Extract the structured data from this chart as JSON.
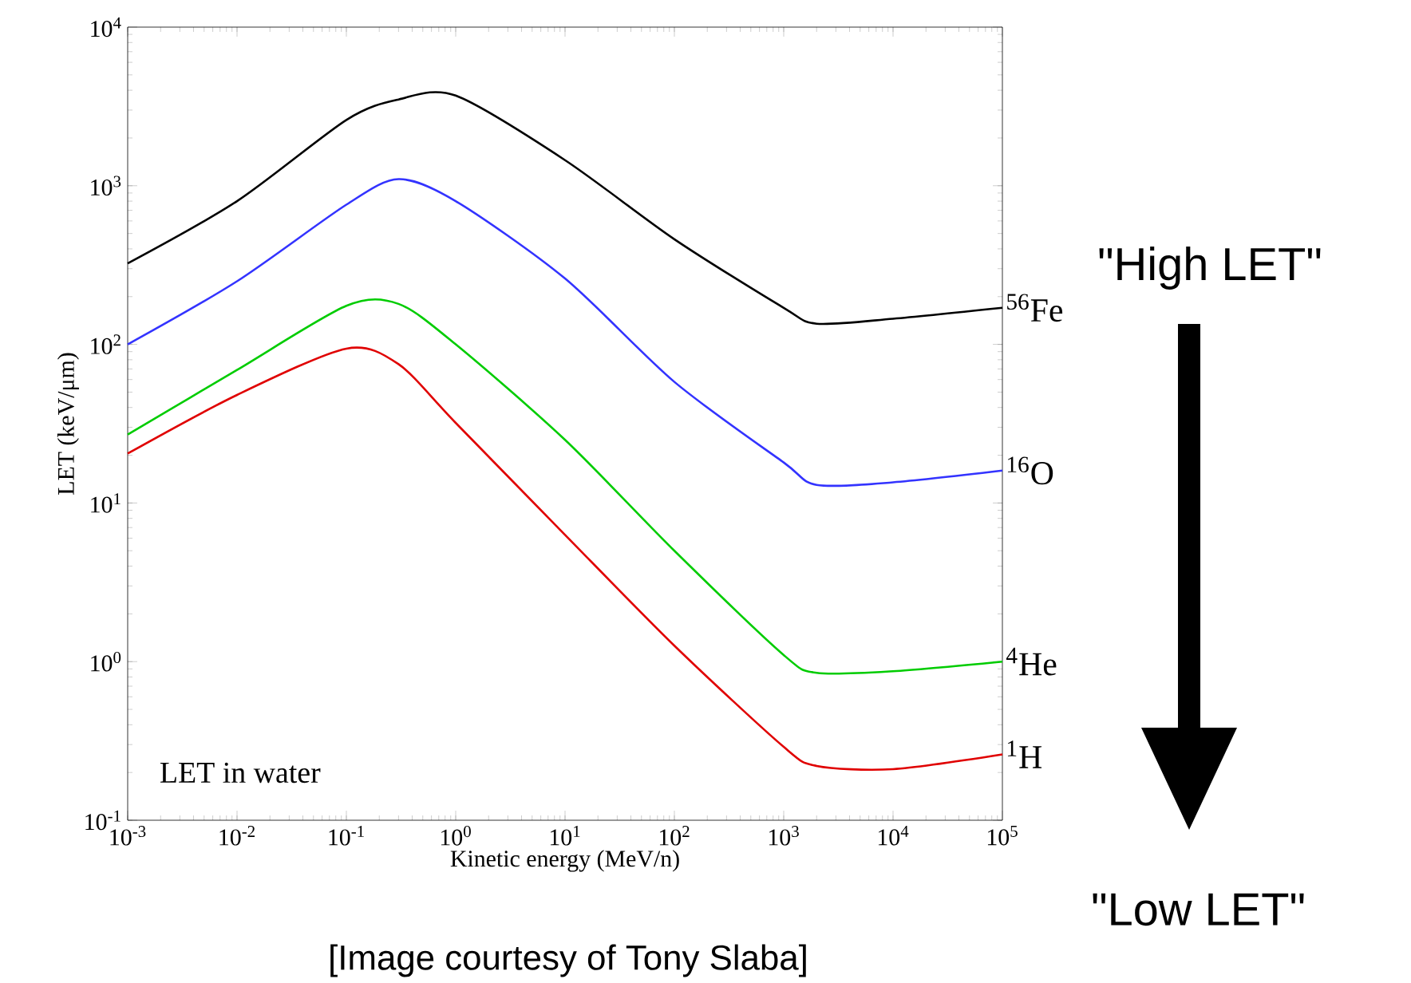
{
  "chart_data": {
    "type": "line",
    "xlabel": "Kinetic energy (MeV/n)",
    "ylabel": "LET (keV/μm)",
    "log": "xy",
    "marker": "none",
    "line_style": "solid",
    "xlim": [
      0.001,
      100000
    ],
    "ylim": [
      0.1,
      10000
    ],
    "xticks": [
      {
        "value": 0.001,
        "label": "10$^{-3}$"
      },
      {
        "value": 0.01,
        "label": "10$^{-2}$"
      },
      {
        "value": 0.1,
        "label": "10$^{-1}$"
      },
      {
        "value": 1,
        "label": "10$^{0}$"
      },
      {
        "value": 10,
        "label": "10$^{1}$"
      },
      {
        "value": 100,
        "label": "10$^{2}$"
      },
      {
        "value": 1000,
        "label": "10$^{3}$"
      },
      {
        "value": 10000,
        "label": "10$^{4}$"
      },
      {
        "value": 100000,
        "label": "10$^{5}$"
      }
    ],
    "yticks": [
      {
        "value": 0.1,
        "label": "10$^{-1}$"
      },
      {
        "value": 1,
        "label": "10$^{0}$"
      },
      {
        "value": 10,
        "label": "10$^{1}$"
      },
      {
        "value": 100,
        "label": "10$^{2}$"
      },
      {
        "value": 1000,
        "label": "10$^{3}$"
      },
      {
        "value": 10000,
        "label": "10$^{4}$"
      }
    ],
    "x": [
      0.001,
      0.01,
      0.1,
      0.3,
      1,
      10,
      100,
      1000,
      2000,
      10000,
      100000
    ],
    "series": [
      {
        "name": "$^{56}$Fe",
        "color": "#000000",
        "values": [
          324,
          800,
          2600,
          3500,
          3700,
          1450,
          460,
          170,
          135,
          145,
          170
        ]
      },
      {
        "name": "$^{16}$O",
        "color": "#3333ff",
        "values": [
          100,
          250,
          760,
          1100,
          800,
          260,
          58,
          18,
          13,
          13.5,
          16
        ]
      },
      {
        "name": "$^{4}$He",
        "color": "#00cc00",
        "values": [
          27,
          69,
          175,
          180,
          100,
          25,
          5,
          1.1,
          0.85,
          0.87,
          1.0
        ]
      },
      {
        "name": "$^{1}$H",
        "color": "#e00000",
        "values": [
          20.5,
          48,
          94,
          75,
          32,
          6.3,
          1.26,
          0.29,
          0.22,
          0.21,
          0.26
        ]
      }
    ],
    "annotations": [
      "LET in water",
      "\"High LET\"",
      "\"Low LET\"",
      "[Image courtesy of Tony Slaba]"
    ]
  }
}
